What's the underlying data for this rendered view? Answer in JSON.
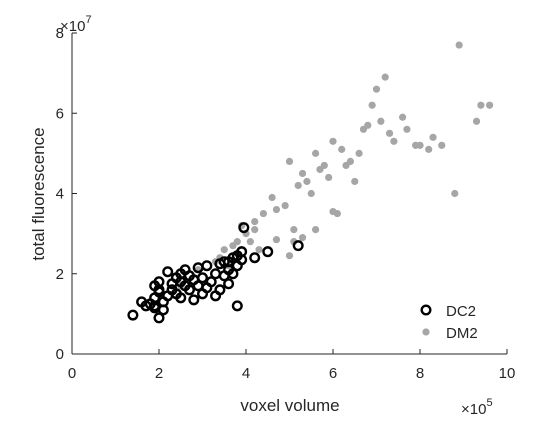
{
  "chart_data": {
    "type": "scatter",
    "xlabel": "voxel volume",
    "ylabel": "total fluorescence",
    "x_exponent_label": "×10",
    "x_exponent_power": "5",
    "y_exponent_label": "×10",
    "y_exponent_power": "7",
    "xlim": [
      0,
      1000000
    ],
    "ylim": [
      0,
      80000000
    ],
    "x_ticks": [
      0,
      200000,
      400000,
      600000,
      800000,
      1000000
    ],
    "x_tick_labels": [
      "0",
      "2",
      "4",
      "6",
      "8",
      "10"
    ],
    "y_ticks": [
      0,
      20000000,
      40000000,
      60000000,
      80000000
    ],
    "y_tick_labels": [
      "0",
      "2",
      "4",
      "6",
      "8"
    ],
    "grid": false,
    "legend_position": "bottom-right",
    "series": [
      {
        "name": "DC2",
        "marker": "open-circle",
        "color": "#000000",
        "x": [
          140000,
          160000,
          170000,
          180000,
          190000,
          190000,
          190000,
          200000,
          200000,
          200000,
          210000,
          220000,
          220000,
          230000,
          240000,
          240000,
          250000,
          250000,
          260000,
          260000,
          270000,
          270000,
          280000,
          280000,
          290000,
          290000,
          300000,
          300000,
          310000,
          310000,
          320000,
          330000,
          330000,
          340000,
          340000,
          350000,
          350000,
          360000,
          360000,
          370000,
          370000,
          380000,
          380000,
          390000,
          390000,
          395000,
          420000,
          450000,
          520000,
          190000,
          200000,
          210000,
          360000,
          380000,
          230000,
          250000
        ],
        "y": [
          9700000,
          13000000,
          12000000,
          12500000,
          14000000,
          17000000,
          11500000,
          9000000,
          18000000,
          15500000,
          13000000,
          20500000,
          14500000,
          16000000,
          19000000,
          15000000,
          18000000,
          14000000,
          21000000,
          17000000,
          19500000,
          16000000,
          18500000,
          13500000,
          17000000,
          21500000,
          15000000,
          19000000,
          22000000,
          16500000,
          18000000,
          20000000,
          14500000,
          22500000,
          16000000,
          19500000,
          23000000,
          21000000,
          17500000,
          24000000,
          20000000,
          22000000,
          12000000,
          25500000,
          23500000,
          31500000,
          24000000,
          25500000,
          27000000,
          12000000,
          16000000,
          11000000,
          23000000,
          24500000,
          17500000,
          20000000
        ]
      },
      {
        "name": "DM2",
        "marker": "filled-circle",
        "color": "#a6a6a6",
        "x": [
          250000,
          290000,
          330000,
          340000,
          350000,
          370000,
          380000,
          390000,
          400000,
          410000,
          420000,
          430000,
          440000,
          460000,
          470000,
          490000,
          500000,
          510000,
          520000,
          530000,
          540000,
          550000,
          560000,
          570000,
          580000,
          590000,
          600000,
          610000,
          620000,
          630000,
          640000,
          650000,
          660000,
          670000,
          680000,
          690000,
          700000,
          710000,
          720000,
          730000,
          740000,
          760000,
          770000,
          790000,
          800000,
          820000,
          830000,
          850000,
          880000,
          890000,
          930000,
          940000,
          960000,
          500000,
          530000,
          560000,
          600000,
          360000,
          380000,
          420000,
          470000,
          510000
        ],
        "y": [
          17000000,
          21000000,
          23000000,
          24000000,
          26000000,
          27000000,
          25000000,
          32000000,
          30000000,
          28000000,
          31000000,
          26000000,
          35000000,
          39000000,
          36000000,
          37000000,
          48000000,
          28000000,
          42000000,
          45000000,
          43000000,
          40000000,
          50000000,
          46000000,
          47000000,
          44000000,
          53000000,
          35000000,
          51000000,
          47000000,
          48000000,
          43000000,
          50000000,
          56000000,
          57000000,
          62000000,
          66000000,
          58000000,
          69000000,
          55000000,
          53000000,
          59000000,
          56000000,
          52000000,
          52000000,
          51000000,
          54000000,
          52000000,
          40000000,
          77000000,
          58000000,
          62000000,
          62000000,
          24500000,
          29000000,
          31000000,
          35500000,
          22000000,
          28000000,
          33000000,
          28500000,
          31000000
        ]
      }
    ]
  }
}
